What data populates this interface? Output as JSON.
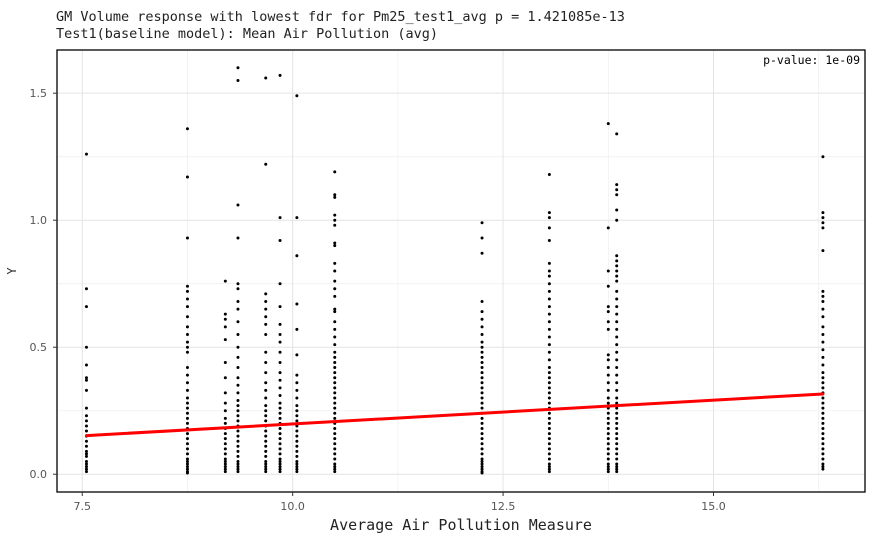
{
  "chart_data": {
    "type": "scatter",
    "title": "GM Volume response with lowest fdr for Pm25_test1_avg p = 1.421085e-13",
    "subtitle": " Test1(baseline model): Mean Air Pollution (avg)",
    "xlabel": "Average Air Pollution Measure",
    "ylabel": "Y",
    "xlim": [
      7.2,
      16.8
    ],
    "ylim": [
      -0.07,
      1.67
    ],
    "xticks": [
      7.5,
      10.0,
      12.5,
      15.0
    ],
    "yticks": [
      0.0,
      0.5,
      1.0,
      1.5
    ],
    "xtick_labels": [
      "7.5",
      "10.0",
      "12.5",
      "15.0"
    ],
    "ytick_labels": [
      "0.0",
      "0.5",
      "1.0",
      "1.5"
    ],
    "grid": true,
    "annotation": "p-value: 1e-09",
    "annotation_position": "top-right",
    "point_color": "#000000",
    "fit_color": "#ff0000",
    "fit_line": {
      "x": [
        7.55,
        16.3
      ],
      "y": [
        0.152,
        0.316
      ]
    },
    "columns": [
      {
        "x": 7.55,
        "y": [
          1.26,
          0.73,
          0.66,
          0.5,
          0.43,
          0.38,
          0.37,
          0.33,
          0.26,
          0.23,
          0.21,
          0.19,
          0.17,
          0.15,
          0.13,
          0.11,
          0.09,
          0.08,
          0.07,
          0.05,
          0.04,
          0.03,
          0.02,
          0.01
        ]
      },
      {
        "x": 8.75,
        "y": [
          1.36,
          1.17,
          0.93,
          0.74,
          0.72,
          0.69,
          0.66,
          0.62,
          0.58,
          0.55,
          0.52,
          0.5,
          0.48,
          0.42,
          0.39,
          0.36,
          0.33,
          0.3,
          0.28,
          0.26,
          0.24,
          0.22,
          0.2,
          0.18,
          0.16,
          0.14,
          0.12,
          0.1,
          0.08,
          0.06,
          0.05,
          0.04,
          0.03,
          0.02,
          0.01,
          0.005
        ]
      },
      {
        "x": 9.2,
        "y": [
          0.76,
          0.63,
          0.61,
          0.58,
          0.53,
          0.44,
          0.38,
          0.32,
          0.28,
          0.25,
          0.22,
          0.2,
          0.18,
          0.16,
          0.14,
          0.12,
          0.1,
          0.08,
          0.06,
          0.05,
          0.04,
          0.03,
          0.02,
          0.01
        ]
      },
      {
        "x": 9.35,
        "y": [
          1.6,
          1.55,
          1.06,
          0.93,
          0.75,
          0.73,
          0.68,
          0.65,
          0.6,
          0.55,
          0.5,
          0.46,
          0.42,
          0.38,
          0.35,
          0.32,
          0.29,
          0.27,
          0.25,
          0.23,
          0.21,
          0.19,
          0.17,
          0.15,
          0.13,
          0.11,
          0.09,
          0.07,
          0.05,
          0.04,
          0.03,
          0.02,
          0.01
        ]
      },
      {
        "x": 9.68,
        "y": [
          1.56,
          1.22,
          0.71,
          0.68,
          0.65,
          0.62,
          0.59,
          0.55,
          0.48,
          0.44,
          0.4,
          0.36,
          0.33,
          0.3,
          0.27,
          0.25,
          0.23,
          0.21,
          0.19,
          0.17,
          0.15,
          0.13,
          0.11,
          0.09,
          0.07,
          0.05,
          0.04,
          0.03,
          0.02,
          0.01
        ]
      },
      {
        "x": 9.85,
        "y": [
          1.57,
          1.01,
          0.92,
          0.75,
          0.66,
          0.59,
          0.55,
          0.52,
          0.48,
          0.44,
          0.4,
          0.37,
          0.34,
          0.31,
          0.28,
          0.26,
          0.24,
          0.22,
          0.2,
          0.18,
          0.16,
          0.14,
          0.12,
          0.1,
          0.08,
          0.06,
          0.05,
          0.04,
          0.03,
          0.02,
          0.01
        ]
      },
      {
        "x": 10.05,
        "y": [
          1.49,
          1.01,
          0.86,
          0.67,
          0.57,
          0.47,
          0.39,
          0.36,
          0.33,
          0.3,
          0.27,
          0.25,
          0.23,
          0.21,
          0.19,
          0.17,
          0.15,
          0.13,
          0.11,
          0.09,
          0.07,
          0.05,
          0.04,
          0.03,
          0.02,
          0.01
        ]
      },
      {
        "x": 10.5,
        "y": [
          1.19,
          1.1,
          1.09,
          1.02,
          1.0,
          0.98,
          0.91,
          0.9,
          0.83,
          0.8,
          0.76,
          0.73,
          0.7,
          0.65,
          0.64,
          0.6,
          0.57,
          0.54,
          0.51,
          0.48,
          0.46,
          0.44,
          0.42,
          0.4,
          0.38,
          0.36,
          0.34,
          0.32,
          0.3,
          0.28,
          0.26,
          0.24,
          0.22,
          0.2,
          0.18,
          0.16,
          0.14,
          0.12,
          0.1,
          0.08,
          0.06,
          0.04,
          0.03,
          0.02,
          0.01
        ]
      },
      {
        "x": 12.25,
        "y": [
          0.99,
          0.93,
          0.87,
          0.68,
          0.64,
          0.61,
          0.58,
          0.55,
          0.52,
          0.5,
          0.48,
          0.46,
          0.44,
          0.42,
          0.4,
          0.38,
          0.36,
          0.34,
          0.32,
          0.3,
          0.28,
          0.26,
          0.24,
          0.22,
          0.2,
          0.18,
          0.16,
          0.14,
          0.12,
          0.1,
          0.08,
          0.06,
          0.05,
          0.04,
          0.03,
          0.02,
          0.01,
          0.005
        ]
      },
      {
        "x": 13.05,
        "y": [
          1.18,
          1.03,
          1.01,
          0.97,
          0.92,
          0.83,
          0.8,
          0.78,
          0.75,
          0.72,
          0.69,
          0.66,
          0.63,
          0.6,
          0.57,
          0.54,
          0.51,
          0.48,
          0.45,
          0.42,
          0.4,
          0.38,
          0.36,
          0.34,
          0.32,
          0.3,
          0.28,
          0.26,
          0.24,
          0.22,
          0.2,
          0.18,
          0.16,
          0.14,
          0.12,
          0.1,
          0.08,
          0.06,
          0.04,
          0.03,
          0.02,
          0.01
        ]
      },
      {
        "x": 13.75,
        "y": [
          1.38,
          0.97,
          0.8,
          0.74,
          0.66,
          0.64,
          0.6,
          0.57,
          0.47,
          0.45,
          0.42,
          0.39,
          0.36,
          0.33,
          0.3,
          0.28,
          0.26,
          0.24,
          0.22,
          0.2,
          0.18,
          0.16,
          0.14,
          0.12,
          0.1,
          0.08,
          0.06,
          0.04,
          0.03,
          0.02,
          0.01
        ]
      },
      {
        "x": 13.85,
        "y": [
          1.34,
          1.14,
          1.12,
          1.1,
          1.04,
          1.0,
          0.86,
          0.84,
          0.82,
          0.8,
          0.78,
          0.76,
          0.72,
          0.69,
          0.66,
          0.63,
          0.6,
          0.57,
          0.54,
          0.51,
          0.48,
          0.45,
          0.42,
          0.39,
          0.36,
          0.33,
          0.3,
          0.28,
          0.26,
          0.24,
          0.22,
          0.2,
          0.18,
          0.16,
          0.14,
          0.12,
          0.1,
          0.08,
          0.06,
          0.04,
          0.03,
          0.02,
          0.01
        ]
      },
      {
        "x": 16.3,
        "y": [
          1.25,
          1.03,
          1.01,
          0.99,
          0.97,
          0.88,
          0.72,
          0.7,
          0.68,
          0.65,
          0.62,
          0.58,
          0.55,
          0.52,
          0.49,
          0.46,
          0.43,
          0.4,
          0.38,
          0.36,
          0.34,
          0.32,
          0.3,
          0.28,
          0.26,
          0.24,
          0.22,
          0.2,
          0.18,
          0.16,
          0.14,
          0.12,
          0.1,
          0.08,
          0.06,
          0.04,
          0.03,
          0.02
        ]
      }
    ]
  }
}
